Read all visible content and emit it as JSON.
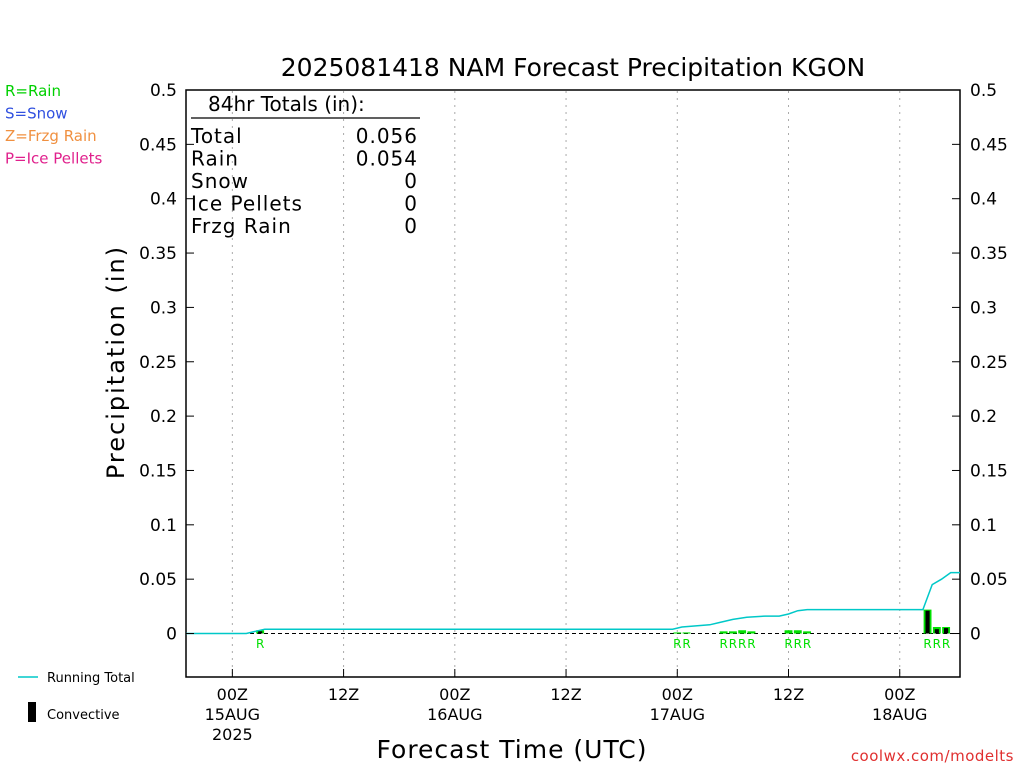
{
  "chart_data": {
    "type": "bar",
    "title": "2025081418 NAM Forecast Precipitation KGON",
    "xlabel": "Forecast Time (UTC)",
    "ylabel": "Precipitation (in)",
    "ylim": [
      -0.04,
      0.5
    ],
    "yticks": [
      "0.5",
      "0.45",
      "0.4",
      "0.35",
      "0.3",
      "0.25",
      "0.2",
      "0.15",
      "0.1",
      "0.05",
      "0"
    ],
    "ytick_values": [
      0.5,
      0.45,
      0.4,
      0.35,
      0.3,
      0.25,
      0.2,
      0.15,
      0.1,
      0.05,
      0
    ],
    "xlim_hours": [
      -5,
      78.5
    ],
    "xticks": [
      {
        "hour": 0,
        "l1": "00Z",
        "l2": "15AUG",
        "l3": "2025"
      },
      {
        "hour": 12,
        "l1": "12Z",
        "l2": "",
        "l3": ""
      },
      {
        "hour": 24,
        "l1": "00Z",
        "l2": "16AUG",
        "l3": ""
      },
      {
        "hour": 36,
        "l1": "12Z",
        "l2": "",
        "l3": ""
      },
      {
        "hour": 48,
        "l1": "00Z",
        "l2": "17AUG",
        "l3": ""
      },
      {
        "hour": 60,
        "l1": "12Z",
        "l2": "",
        "l3": ""
      },
      {
        "hour": 72,
        "l1": "00Z",
        "l2": "18AUG",
        "l3": ""
      }
    ],
    "grid": true,
    "series": [
      {
        "name": "Rain",
        "color": "#00e000",
        "x": [
          3,
          48,
          49,
          53,
          54,
          55,
          56,
          60,
          61,
          62,
          75,
          76,
          77
        ],
        "values": [
          0.003,
          0.001,
          0.001,
          0.002,
          0.002,
          0.003,
          0.002,
          0.003,
          0.003,
          0.002,
          0.022,
          0.006,
          0.006
        ]
      },
      {
        "name": "Running Total",
        "color": "#00c8c8",
        "x": [
          -5,
          1.5,
          2.5,
          3.5,
          47.5,
          48.5,
          50,
          51.5,
          52.5,
          54,
          55.5,
          57.5,
          59,
          60,
          61,
          62,
          74.5,
          75.5,
          76.5,
          77.5,
          78.5
        ],
        "values": [
          0,
          0,
          0.002,
          0.004,
          0.004,
          0.006,
          0.007,
          0.008,
          0.01,
          0.013,
          0.015,
          0.016,
          0.016,
          0.018,
          0.021,
          0.022,
          0.022,
          0.045,
          0.05,
          0.056,
          0.056
        ]
      },
      {
        "name": "Convective",
        "color": "#000000",
        "x": [
          3,
          75,
          76,
          77
        ],
        "values": [
          0.002,
          0.021,
          0.004,
          0.005
        ]
      }
    ],
    "ptype_labels": [
      {
        "hour": 3,
        "text": "R"
      },
      {
        "hour": 48,
        "text": "R"
      },
      {
        "hour": 49,
        "text": "R"
      },
      {
        "hour": 53,
        "text": "R"
      },
      {
        "hour": 54,
        "text": "R"
      },
      {
        "hour": 55,
        "text": "R"
      },
      {
        "hour": 56,
        "text": "R"
      },
      {
        "hour": 60,
        "text": "R"
      },
      {
        "hour": 61,
        "text": "R"
      },
      {
        "hour": 62,
        "text": "R"
      },
      {
        "hour": 75,
        "text": "R"
      },
      {
        "hour": 76,
        "text": "R"
      },
      {
        "hour": 77,
        "text": "R"
      }
    ]
  },
  "totals": {
    "header": "84hr Totals (in):",
    "rows": [
      {
        "label": "Total",
        "value": "0.056"
      },
      {
        "label": "Rain",
        "value": "0.054"
      },
      {
        "label": "Snow",
        "value": "0"
      },
      {
        "label": "Ice Pellets",
        "value": "0"
      },
      {
        "label": "Frzg Rain",
        "value": "0"
      }
    ]
  },
  "ptype_key": [
    {
      "text": "R=Rain",
      "color": "#00d000"
    },
    {
      "text": "S=Snow",
      "color": "#3050e0"
    },
    {
      "text": "Z=Frzg Rain",
      "color": "#f09040"
    },
    {
      "text": "P=Ice Pellets",
      "color": "#e0208c"
    }
  ],
  "legend": {
    "running_total": "Running Total",
    "convective": "Convective"
  },
  "credit": "coolwx.com/modelts",
  "colors": {
    "rain": "#00e000",
    "running_total": "#00c8c8",
    "convective": "#000000",
    "credit": "#e03030",
    "grid": "#aaaaaa"
  }
}
